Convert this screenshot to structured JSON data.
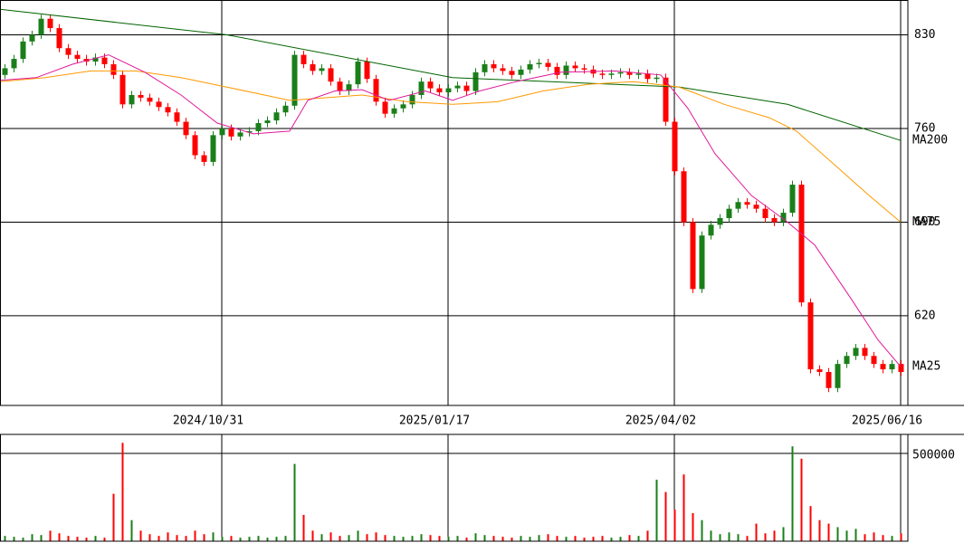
{
  "chart_data": [
    {
      "type": "candlestick",
      "xlim": [
        -0.5,
        99.8
      ],
      "xticks": [
        {
          "value": 24,
          "label": "2024/10/31"
        },
        {
          "value": 49,
          "label": "2025/01/17"
        },
        {
          "value": 74,
          "label": "2025/04/02"
        },
        {
          "value": 99,
          "label": "2025/06/16"
        }
      ],
      "ylim": [
        553,
        856
      ],
      "yticks": [
        620,
        690,
        760,
        830
      ],
      "grid": true,
      "up_color": "#1a7f1a",
      "down_color": "#ff0000",
      "open": [
        800,
        805,
        812,
        825,
        830,
        842,
        835,
        820,
        815,
        812,
        810,
        813,
        808,
        800,
        778,
        785,
        783,
        780,
        776,
        772,
        765,
        755,
        740,
        735,
        755,
        760,
        754,
        757,
        758,
        764,
        766,
        772,
        777,
        815,
        808,
        803,
        805,
        795,
        788,
        793,
        810,
        797,
        780,
        771,
        775,
        778,
        785,
        795,
        790,
        787,
        790,
        792,
        788,
        802,
        808,
        805,
        803,
        800,
        804,
        808,
        809,
        806,
        800,
        807,
        805,
        804,
        801,
        800,
        801,
        802,
        800,
        801,
        797,
        798,
        765,
        728,
        690,
        640,
        680,
        688,
        693,
        700,
        705,
        703,
        700,
        693,
        690,
        697,
        718,
        630,
        580,
        578,
        566,
        584,
        590,
        596,
        590,
        584,
        580,
        584
      ],
      "high": [
        808,
        815,
        828,
        833,
        845,
        845,
        838,
        823,
        818,
        815,
        816,
        816,
        811,
        803,
        788,
        788,
        786,
        783,
        779,
        775,
        768,
        758,
        743,
        758,
        763,
        763,
        760,
        761,
        767,
        769,
        775,
        780,
        818,
        818,
        811,
        808,
        808,
        798,
        796,
        813,
        813,
        800,
        783,
        778,
        781,
        788,
        798,
        798,
        793,
        793,
        795,
        795,
        805,
        811,
        811,
        808,
        806,
        807,
        811,
        812,
        812,
        809,
        810,
        810,
        808,
        807,
        804,
        804,
        805,
        805,
        804,
        804,
        801,
        801,
        768,
        731,
        693,
        683,
        691,
        696,
        703,
        708,
        708,
        706,
        703,
        696,
        700,
        721,
        721,
        633,
        583,
        581,
        587,
        593,
        599,
        599,
        593,
        587,
        587,
        587
      ],
      "low": [
        797,
        802,
        809,
        822,
        827,
        832,
        817,
        812,
        809,
        807,
        807,
        805,
        797,
        775,
        775,
        780,
        777,
        773,
        769,
        762,
        752,
        737,
        732,
        732,
        752,
        751,
        751,
        754,
        755,
        761,
        763,
        769,
        774,
        805,
        800,
        800,
        792,
        785,
        785,
        790,
        794,
        777,
        768,
        768,
        772,
        775,
        782,
        787,
        784,
        784,
        787,
        785,
        785,
        799,
        802,
        800,
        797,
        797,
        801,
        805,
        803,
        797,
        797,
        802,
        801,
        798,
        797,
        797,
        798,
        797,
        797,
        794,
        794,
        762,
        725,
        687,
        637,
        637,
        677,
        685,
        690,
        697,
        700,
        697,
        690,
        687,
        687,
        694,
        627,
        577,
        575,
        563,
        563,
        581,
        587,
        587,
        581,
        577,
        577,
        575
      ],
      "close": [
        805,
        812,
        825,
        830,
        842,
        835,
        820,
        815,
        812,
        810,
        813,
        808,
        800,
        778,
        785,
        783,
        780,
        776,
        772,
        765,
        755,
        740,
        735,
        755,
        760,
        754,
        757,
        758,
        764,
        766,
        772,
        777,
        815,
        808,
        803,
        805,
        795,
        788,
        793,
        810,
        797,
        780,
        771,
        775,
        778,
        785,
        795,
        790,
        787,
        790,
        792,
        788,
        802,
        808,
        805,
        803,
        800,
        804,
        808,
        809,
        806,
        800,
        807,
        805,
        804,
        801,
        800,
        801,
        802,
        800,
        801,
        797,
        798,
        765,
        728,
        690,
        640,
        680,
        688,
        693,
        700,
        705,
        703,
        700,
        693,
        690,
        697,
        718,
        630,
        580,
        578,
        566,
        584,
        590,
        596,
        590,
        584,
        580,
        584,
        578
      ],
      "series": [
        {
          "name": "MA200",
          "color": "#006400",
          "x": [
            -0.5,
            24.5,
            49.5,
            74.5,
            86.5,
            99
          ],
          "values": [
            849,
            830,
            798,
            791,
            778,
            751
          ]
        },
        {
          "name": "MA75",
          "color": "#ff9900",
          "x": [
            -0.5,
            4.5,
            9.5,
            14.5,
            19.5,
            24.5,
            31.5,
            39.5,
            44.5,
            49.5,
            54.5,
            59.5,
            64.5,
            69.5,
            74.5,
            79.5,
            84.5,
            87.5,
            91.5,
            95.5,
            99
          ],
          "values": [
            795,
            798,
            803,
            803,
            798,
            791,
            781,
            785,
            780,
            778,
            780,
            788,
            793,
            795,
            791,
            778,
            768,
            758,
            734,
            710,
            690
          ]
        },
        {
          "name": "MA25",
          "color": "#e0189a",
          "x": [
            -0.5,
            3.5,
            7.5,
            11.5,
            15.5,
            19.5,
            23.5,
            27.5,
            31.5,
            33.5,
            36.5,
            39.5,
            42.5,
            46.5,
            49.5,
            52.5,
            56.5,
            61.5,
            67.5,
            72.5,
            75.5,
            78.5,
            82.5,
            86.5,
            89.5,
            93.5,
            96.5,
            99
          ],
          "values": [
            796,
            798,
            808,
            815,
            802,
            785,
            764,
            756,
            758,
            781,
            788,
            789,
            781,
            788,
            781,
            788,
            795,
            802,
            803,
            800,
            775,
            741,
            710,
            690,
            673,
            633,
            602,
            582
          ]
        }
      ]
    },
    {
      "type": "bar",
      "ylim": [
        0,
        608000
      ],
      "yticks": [
        500000
      ],
      "values": [
        30000,
        25000,
        20000,
        40000,
        35000,
        60000,
        45000,
        30000,
        25000,
        20000,
        30000,
        20000,
        270000,
        560000,
        120000,
        60000,
        40000,
        30000,
        50000,
        35000,
        30000,
        60000,
        40000,
        50000,
        25000,
        30000,
        20000,
        25000,
        30000,
        20000,
        25000,
        30000,
        440000,
        150000,
        60000,
        40000,
        50000,
        30000,
        35000,
        60000,
        40000,
        50000,
        35000,
        30000,
        25000,
        30000,
        40000,
        35000,
        30000,
        25000,
        30000,
        20000,
        45000,
        35000,
        30000,
        25000,
        20000,
        30000,
        25000,
        35000,
        40000,
        30000,
        25000,
        30000,
        20000,
        25000,
        30000,
        20000,
        25000,
        35000,
        30000,
        60000,
        350000,
        280000,
        180000,
        380000,
        160000,
        120000,
        60000,
        40000,
        50000,
        40000,
        30000,
        100000,
        45000,
        60000,
        80000,
        540000,
        470000,
        200000,
        120000,
        100000,
        80000,
        60000,
        70000,
        40000,
        50000,
        35000,
        30000,
        45000
      ]
    }
  ]
}
